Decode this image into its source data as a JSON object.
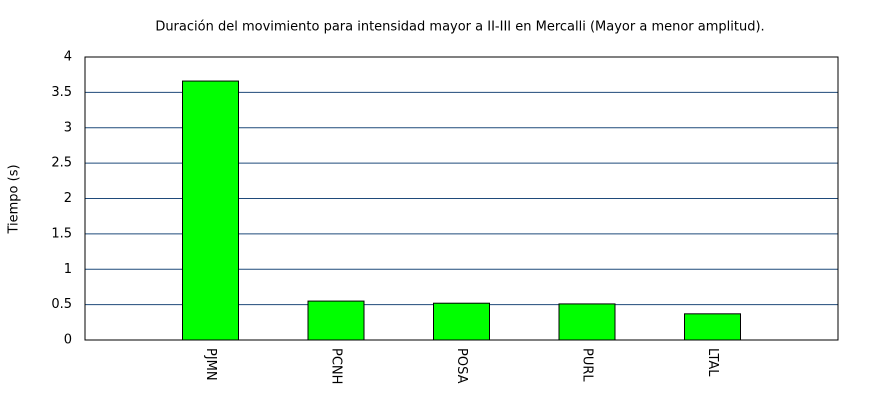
{
  "chart_data": {
    "type": "bar",
    "title": "Duración del movimiento para intensidad mayor a II-III en Mercalli (Mayor a menor amplitud).",
    "y_label": "Tiempo (s)",
    "categories": [
      "PJMN",
      "PCNH",
      "POSA",
      "PURL",
      "LTAL"
    ],
    "values": [
      3.66,
      0.55,
      0.52,
      0.51,
      0.37
    ],
    "color": "#00ff00",
    "ylim": [
      0,
      4
    ],
    "yticks": [
      0,
      0.5,
      1,
      1.5,
      2,
      2.5,
      3,
      3.5,
      4
    ],
    "grid": true
  }
}
